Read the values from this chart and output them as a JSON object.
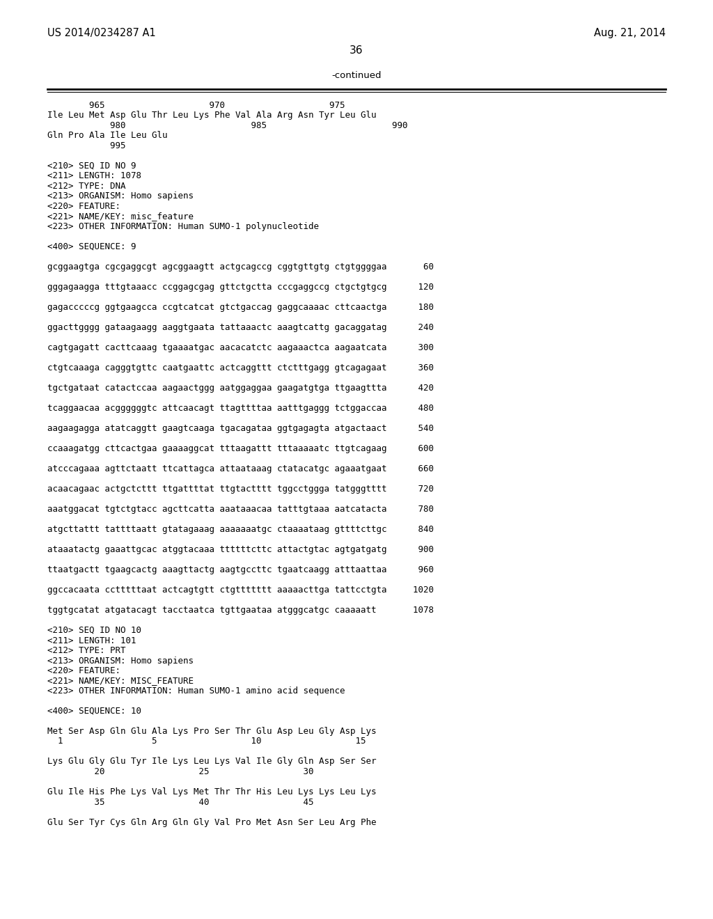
{
  "header_left": "US 2014/0234287 A1",
  "header_right": "Aug. 21, 2014",
  "page_number": "36",
  "continued_label": "-continued",
  "background_color": "#ffffff",
  "text_color": "#000000",
  "content_lines": [
    "        965                    970                    975",
    "Ile Leu Met Asp Glu Thr Leu Lys Phe Val Ala Arg Asn Tyr Leu Glu",
    "            980                        985                        990",
    "Gln Pro Ala Ile Leu Glu",
    "            995",
    "",
    "<210> SEQ ID NO 9",
    "<211> LENGTH: 1078",
    "<212> TYPE: DNA",
    "<213> ORGANISM: Homo sapiens",
    "<220> FEATURE:",
    "<221> NAME/KEY: misc_feature",
    "<223> OTHER INFORMATION: Human SUMO-1 polynucleotide",
    "",
    "<400> SEQUENCE: 9",
    "",
    "gcggaagtga cgcgaggcgt agcggaagtt actgcagccg cggtgttgtg ctgtggggaa       60",
    "",
    "gggagaagga tttgtaaacc ccggagcgag gttctgctta cccgaggccg ctgctgtgcg      120",
    "",
    "gagacccccg ggtgaagcca ccgtcatcat gtctgaccag gaggcaaaac cttcaactga      180",
    "",
    "ggacttgggg gataagaagg aaggtgaata tattaaactc aaagtcattg gacaggatag      240",
    "",
    "cagtgagatt cacttcaaag tgaaaatgac aacacatctc aagaaactca aagaatcata      300",
    "",
    "ctgtcaaaga cagggtgttc caatgaattc actcaggttt ctctttgagg gtcagagaat      360",
    "",
    "tgctgataat catactccaa aagaactggg aatggaggaa gaagatgtga ttgaagttta      420",
    "",
    "tcaggaacaa acggggggtc attcaacagt ttagttttaa aatttgaggg tctggaccaa      480",
    "",
    "aagaagagga atatcaggtt gaagtcaaga tgacagataa ggtgagagta atgactaact      540",
    "",
    "ccaaagatgg cttcactgaa gaaaaggcat tttaagattt tttaaaaatc ttgtcagaag      600",
    "",
    "atcccagaaa agttctaatt ttcattagca attaataaag ctatacatgc agaaatgaat      660",
    "",
    "acaacagaac actgctcttt ttgattttat ttgtactttt tggcctggga tatgggtttt      720",
    "",
    "aaatggacat tgtctgtacc agcttcatta aaataaacaa tatttgtaaa aatcatacta      780",
    "",
    "atgcttattt tattttaatt gtatagaaag aaaaaaatgc ctaaaataag gttttcttgc      840",
    "",
    "ataaatactg gaaattgcac atggtacaaa ttttttcttc attactgtac agtgatgatg      900",
    "",
    "ttaatgactt tgaagcactg aaagttactg aagtgccttc tgaatcaagg atttaattaa      960",
    "",
    "ggccacaata cctttttaat actcagtgtt ctgttttttt aaaaacttga tattcctgta     1020",
    "",
    "tggtgcatat atgatacagt tacctaatca tgttgaataa atgggcatgc caaaaatt       1078",
    "",
    "<210> SEQ ID NO 10",
    "<211> LENGTH: 101",
    "<212> TYPE: PRT",
    "<213> ORGANISM: Homo sapiens",
    "<220> FEATURE:",
    "<221> NAME/KEY: MISC_FEATURE",
    "<223> OTHER INFORMATION: Human SUMO-1 amino acid sequence",
    "",
    "<400> SEQUENCE: 10",
    "",
    "Met Ser Asp Gln Glu Ala Lys Pro Ser Thr Glu Asp Leu Gly Asp Lys",
    "  1                 5                  10                  15",
    "",
    "Lys Glu Gly Glu Tyr Ile Lys Leu Lys Val Ile Gly Gln Asp Ser Ser",
    "         20                  25                  30",
    "",
    "Glu Ile His Phe Lys Val Lys Met Thr Thr His Leu Lys Lys Leu Lys",
    "         35                  40                  45",
    "",
    "Glu Ser Tyr Cys Gln Arg Gln Gly Val Pro Met Asn Ser Leu Arg Phe"
  ]
}
